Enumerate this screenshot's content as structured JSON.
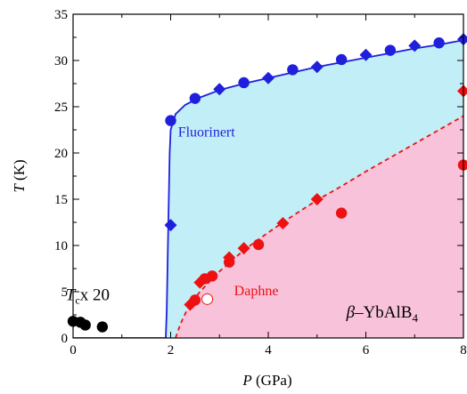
{
  "colors": {
    "blue": "#1f1fdc",
    "red": "#ee1111",
    "black": "#000000",
    "cyan_fill": "#c2eef8",
    "pink_fill": "#f8c2da"
  },
  "chart_data": {
    "type": "scatter",
    "xlabel": {
      "italic": "P",
      "rest": " (GPa)"
    },
    "ylabel": {
      "italic": "T",
      "rest": " (K)"
    },
    "xlim": [
      0,
      8
    ],
    "ylim": [
      0,
      35
    ],
    "xticks": [
      0,
      2,
      4,
      6,
      8
    ],
    "yticks": [
      0,
      5,
      10,
      15,
      20,
      25,
      30,
      35
    ],
    "x_tick_labels": [
      "0",
      "2",
      "4",
      "6",
      "8"
    ],
    "y_tick_labels": [
      "0",
      "5",
      "10",
      "15",
      "20",
      "25",
      "30",
      "35"
    ],
    "series": [
      {
        "name": "Fluorinert",
        "color": "#1f1fdc",
        "points": [
          {
            "x": 2.0,
            "y": 23.5,
            "marker": "circle"
          },
          {
            "x": 2.0,
            "y": 12.2,
            "marker": "diamond"
          },
          {
            "x": 2.5,
            "y": 25.9,
            "marker": "circle"
          },
          {
            "x": 3.0,
            "y": 26.9,
            "marker": "diamond"
          },
          {
            "x": 3.5,
            "y": 27.6,
            "marker": "circle"
          },
          {
            "x": 4.0,
            "y": 28.1,
            "marker": "diamond"
          },
          {
            "x": 4.5,
            "y": 29.0,
            "marker": "circle"
          },
          {
            "x": 5.0,
            "y": 29.3,
            "marker": "diamond"
          },
          {
            "x": 5.5,
            "y": 30.1,
            "marker": "circle"
          },
          {
            "x": 6.0,
            "y": 30.6,
            "marker": "diamond"
          },
          {
            "x": 6.5,
            "y": 31.1,
            "marker": "circle"
          },
          {
            "x": 7.0,
            "y": 31.6,
            "marker": "diamond"
          },
          {
            "x": 7.5,
            "y": 31.9,
            "marker": "circle"
          },
          {
            "x": 8.0,
            "y": 32.3,
            "marker": "diamond"
          }
        ]
      },
      {
        "name": "Daphne",
        "color": "#ee1111",
        "points": [
          {
            "x": 2.4,
            "y": 3.6,
            "marker": "diamond"
          },
          {
            "x": 2.5,
            "y": 4.1,
            "marker": "circle"
          },
          {
            "x": 2.6,
            "y": 6.0,
            "marker": "diamond"
          },
          {
            "x": 2.7,
            "y": 6.4,
            "marker": "circle"
          },
          {
            "x": 2.85,
            "y": 6.7,
            "marker": "circle"
          },
          {
            "x": 3.2,
            "y": 8.2,
            "marker": "circle"
          },
          {
            "x": 3.2,
            "y": 8.7,
            "marker": "diamond"
          },
          {
            "x": 3.5,
            "y": 9.7,
            "marker": "diamond"
          },
          {
            "x": 3.8,
            "y": 10.1,
            "marker": "circle"
          },
          {
            "x": 4.3,
            "y": 12.4,
            "marker": "diamond"
          },
          {
            "x": 5.0,
            "y": 15.0,
            "marker": "diamond"
          },
          {
            "x": 5.5,
            "y": 13.5,
            "marker": "circle"
          },
          {
            "x": 8.0,
            "y": 26.7,
            "marker": "diamond"
          },
          {
            "x": 8.0,
            "y": 18.7,
            "marker": "circle"
          },
          {
            "x": 2.75,
            "y": 4.2,
            "marker": "open-circle"
          }
        ]
      },
      {
        "name": "Tc x 20",
        "color": "#000000",
        "points": [
          {
            "x": 0.0,
            "y": 1.8,
            "marker": "circle"
          },
          {
            "x": 0.15,
            "y": 1.7,
            "marker": "circle"
          },
          {
            "x": 0.25,
            "y": 1.4,
            "marker": "circle"
          },
          {
            "x": 0.6,
            "y": 1.2,
            "marker": "circle"
          }
        ]
      }
    ],
    "fit_curves": {
      "fluorinert_boundary": [
        [
          1.9,
          0
        ],
        [
          1.92,
          3
        ],
        [
          1.95,
          12
        ],
        [
          1.98,
          20
        ],
        [
          2.0,
          22.5
        ],
        [
          2.1,
          24.2
        ],
        [
          2.3,
          25.2
        ],
        [
          2.6,
          26.0
        ],
        [
          3.0,
          26.8
        ],
        [
          3.5,
          27.5
        ],
        [
          4.0,
          28.1
        ],
        [
          4.5,
          28.7
        ],
        [
          5.0,
          29.3
        ],
        [
          5.5,
          29.8
        ],
        [
          6.0,
          30.3
        ],
        [
          6.5,
          30.8
        ],
        [
          7.0,
          31.3
        ],
        [
          7.5,
          31.7
        ],
        [
          8.0,
          32.2
        ]
      ],
      "daphne_boundary": [
        [
          2.1,
          0
        ],
        [
          2.2,
          1.5
        ],
        [
          2.35,
          3.2
        ],
        [
          2.6,
          5.0
        ],
        [
          3.0,
          7.2
        ],
        [
          3.5,
          9.5
        ],
        [
          4.0,
          11.4
        ],
        [
          4.5,
          13.2
        ],
        [
          5.0,
          14.9
        ],
        [
          5.5,
          16.4
        ],
        [
          6.0,
          18.0
        ],
        [
          6.5,
          19.5
        ],
        [
          7.0,
          21.0
        ],
        [
          7.5,
          22.5
        ],
        [
          8.0,
          24.0
        ]
      ]
    },
    "annotations": {
      "fluorinert": "Fluorinert",
      "daphne": "Daphne",
      "tc_x20": {
        "symbol": "T",
        "subscript": "c",
        "rest": "x 20"
      },
      "compound": {
        "prefix": "β",
        "dash": "–",
        "body": "YbAlB",
        "subscript": "4"
      }
    }
  }
}
